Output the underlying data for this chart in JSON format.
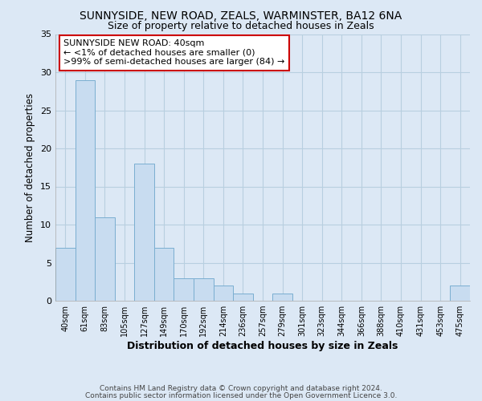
{
  "title": "SUNNYSIDE, NEW ROAD, ZEALS, WARMINSTER, BA12 6NA",
  "subtitle": "Size of property relative to detached houses in Zeals",
  "xlabel": "Distribution of detached houses by size in Zeals",
  "ylabel": "Number of detached properties",
  "bar_color": "#c8dcf0",
  "bar_edge_color": "#7aaed0",
  "categories": [
    "40sqm",
    "61sqm",
    "83sqm",
    "105sqm",
    "127sqm",
    "149sqm",
    "170sqm",
    "192sqm",
    "214sqm",
    "236sqm",
    "257sqm",
    "279sqm",
    "301sqm",
    "323sqm",
    "344sqm",
    "366sqm",
    "388sqm",
    "410sqm",
    "431sqm",
    "453sqm",
    "475sqm"
  ],
  "values": [
    7,
    29,
    11,
    0,
    18,
    7,
    3,
    3,
    2,
    1,
    0,
    1,
    0,
    0,
    0,
    0,
    0,
    0,
    0,
    0,
    2
  ],
  "ylim": [
    0,
    35
  ],
  "yticks": [
    0,
    5,
    10,
    15,
    20,
    25,
    30,
    35
  ],
  "annotation_title": "SUNNYSIDE NEW ROAD: 40sqm",
  "annotation_line1": "← <1% of detached houses are smaller (0)",
  "annotation_line2": ">99% of semi-detached houses are larger (84) →",
  "annotation_box_color": "#ffffff",
  "annotation_box_edge_color": "#cc0000",
  "footer_line1": "Contains HM Land Registry data © Crown copyright and database right 2024.",
  "footer_line2": "Contains public sector information licensed under the Open Government Licence 3.0.",
  "background_color": "#dce8f5",
  "plot_background_color": "#dce8f5",
  "grid_color": "#b8cfe0"
}
